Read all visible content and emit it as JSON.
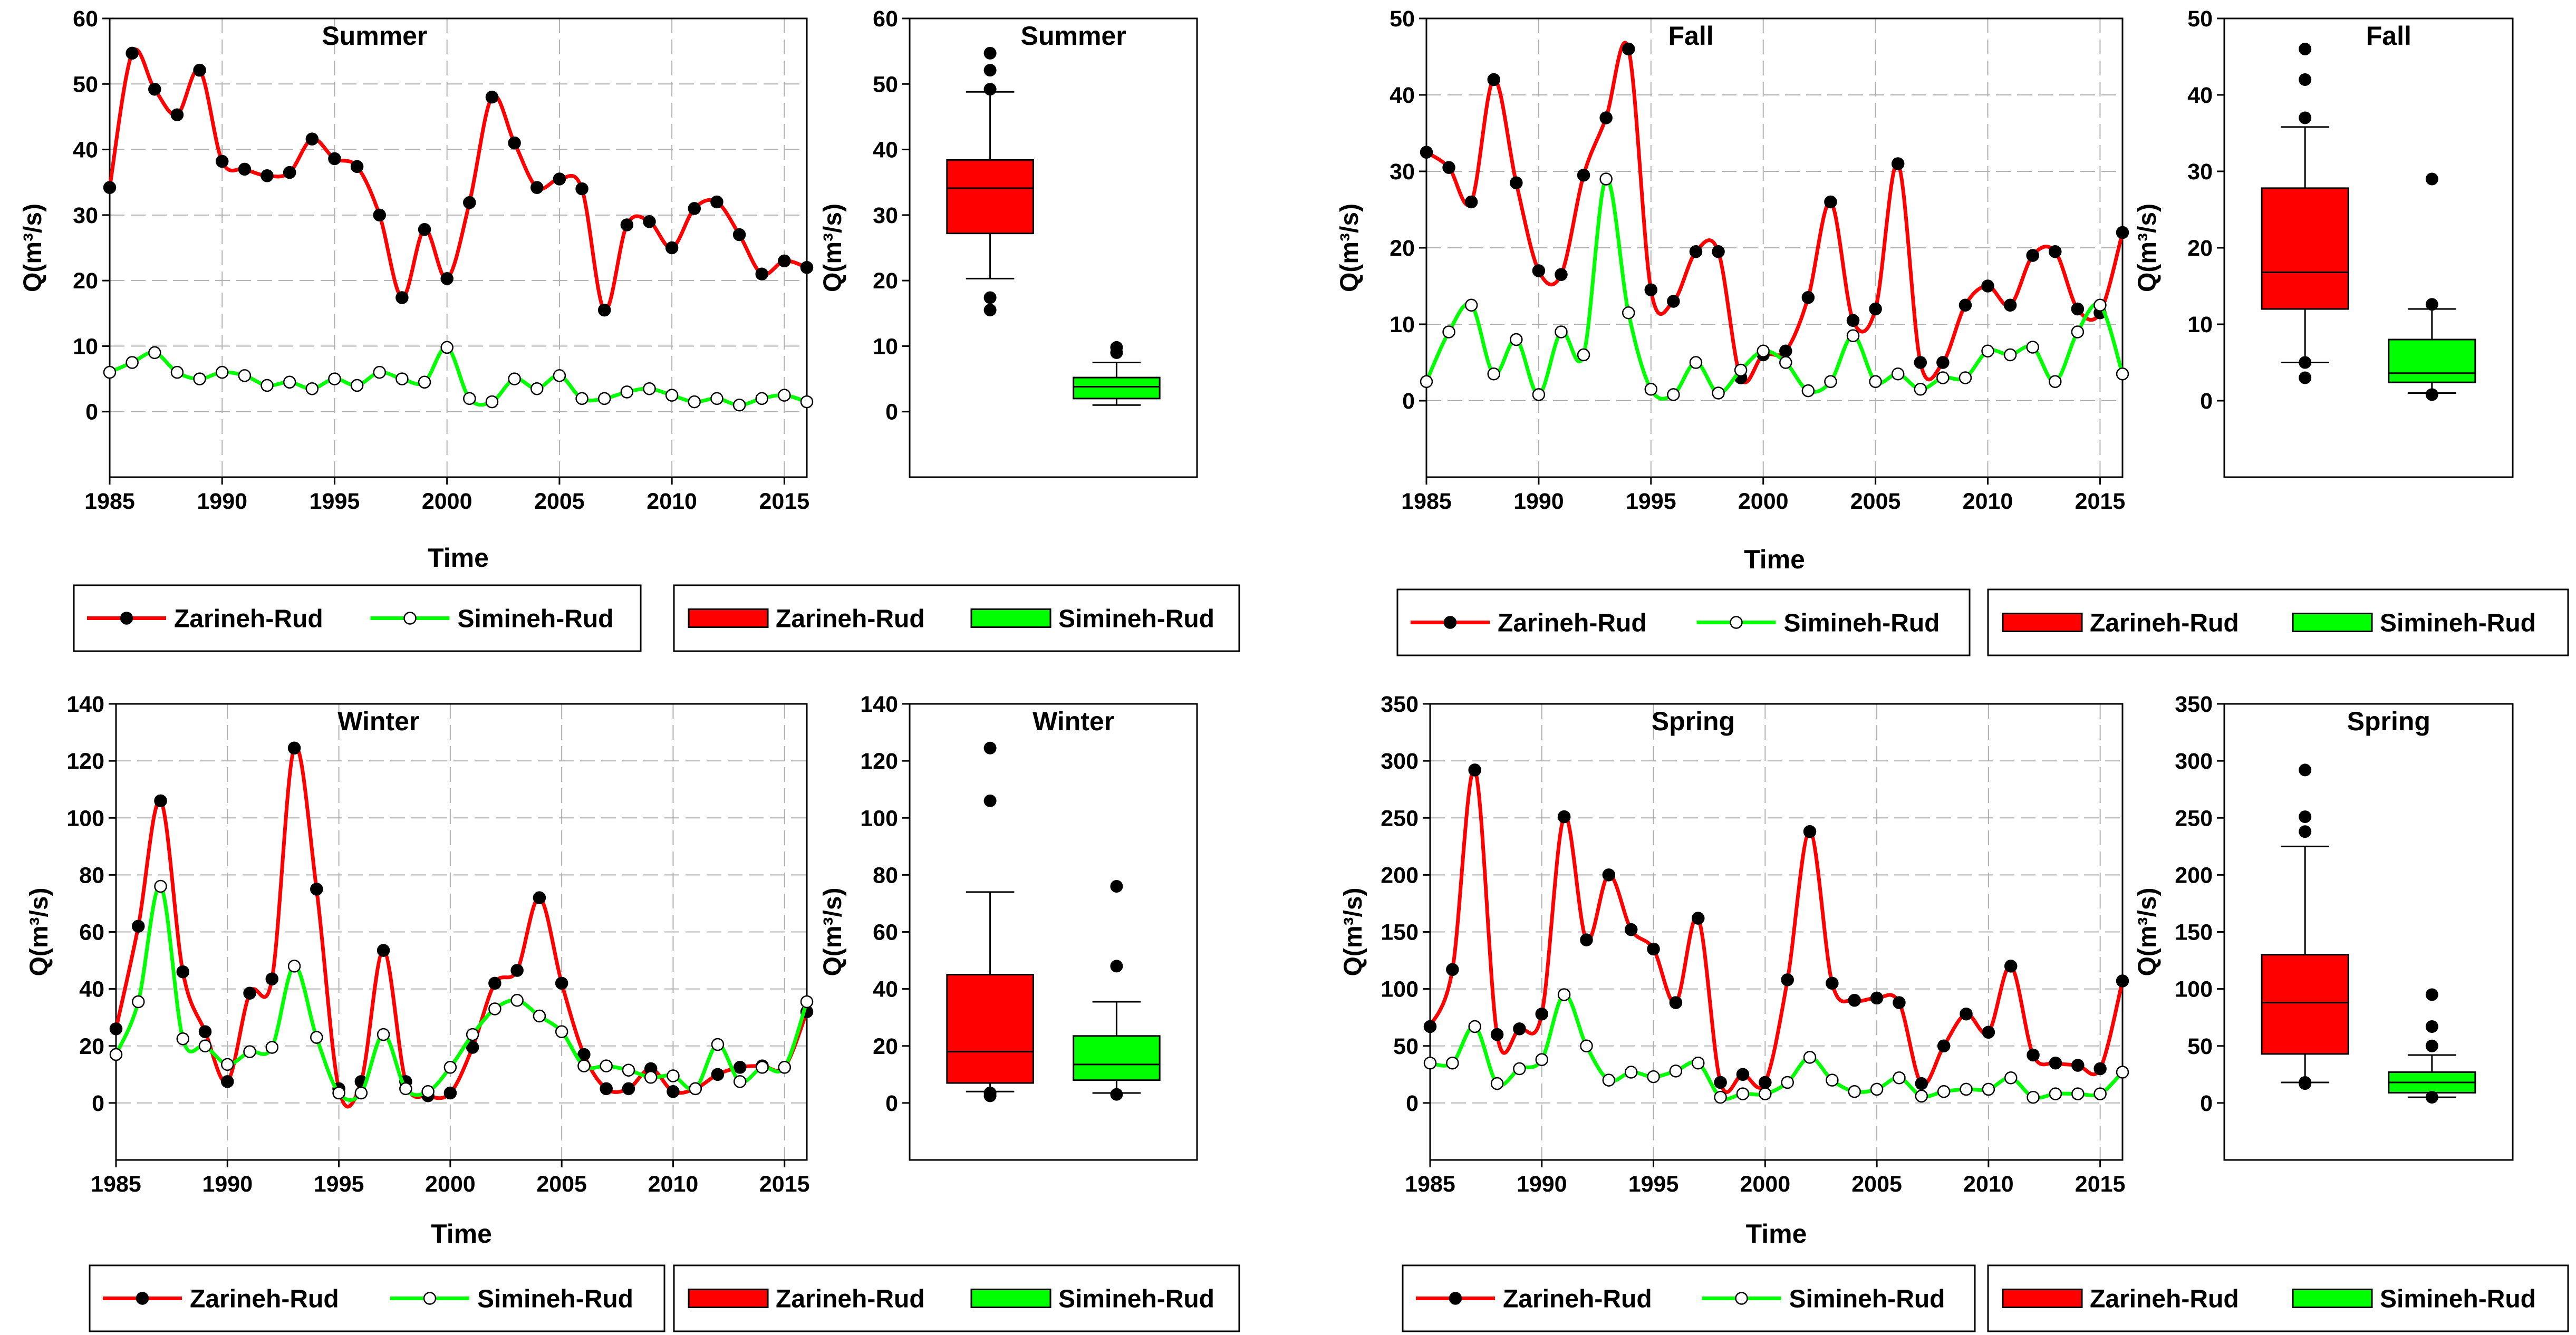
{
  "colors": {
    "zarineh": "#ff0000",
    "simineh": "#00ff00",
    "axis": "#000000",
    "grid": "#b0b0b0"
  },
  "legend": {
    "line_items": [
      {
        "label": "Zarineh-Rud",
        "marker": "filled-circle"
      },
      {
        "label": "Simineh-Rud",
        "marker": "open-circle"
      }
    ],
    "box_items": [
      {
        "label": "Zarineh-Rud"
      },
      {
        "label": "Simineh-Rud"
      }
    ]
  },
  "chart_data": [
    {
      "type": "line",
      "panel": "Summer",
      "title": "Summer",
      "xlabel": "Time",
      "ylabel": "Q(m³/s)",
      "xlim": [
        1985,
        2016
      ],
      "ylim": [
        -10,
        60
      ],
      "xticks": [
        "1985",
        "1990",
        "1995",
        "2000",
        "2005",
        "2010",
        "2015"
      ],
      "yticks": [
        "0",
        "10",
        "20",
        "30",
        "40",
        "50",
        "60"
      ],
      "x": [
        1985,
        1986,
        1987,
        1988,
        1989,
        1990,
        1991,
        1992,
        1993,
        1994,
        1995,
        1996,
        1997,
        1998,
        1999,
        2000,
        2001,
        2002,
        2003,
        2004,
        2005,
        2006,
        2007,
        2008,
        2009,
        2010,
        2011,
        2012,
        2013,
        2014,
        2015,
        2016
      ],
      "series": [
        {
          "name": "Zarineh-Rud",
          "values": [
            34.2,
            54.7,
            49.2,
            45.3,
            52.1,
            38.2,
            37.0,
            36.0,
            36.5,
            41.6,
            38.6,
            37.4,
            30.0,
            17.4,
            27.8,
            20.3,
            31.9,
            48.0,
            41.0,
            34.2,
            35.5,
            34.0,
            15.5,
            28.5,
            29.0,
            25.0,
            31.0,
            32.0,
            27.0,
            21.0,
            23.0,
            22.0
          ]
        },
        {
          "name": "Simineh-Rud",
          "values": [
            6.0,
            7.5,
            9.0,
            6.0,
            5.0,
            6.0,
            5.5,
            4.0,
            4.5,
            3.5,
            5.0,
            4.0,
            6.0,
            5.0,
            4.5,
            9.8,
            2.0,
            1.5,
            5.0,
            3.5,
            5.5,
            2.0,
            2.0,
            3.0,
            3.5,
            2.5,
            1.5,
            2.0,
            1.0,
            2.0,
            2.5,
            1.5
          ]
        }
      ]
    },
    {
      "type": "box",
      "panel": "Summer",
      "title": "Summer",
      "ylabel": "Q(m³/s)",
      "ylim": [
        -10,
        60
      ],
      "yticks": [
        "0",
        "10",
        "20",
        "30",
        "40",
        "50",
        "60"
      ],
      "boxes": [
        {
          "name": "Zarineh-Rud",
          "whisker_low": 20.3,
          "q1": 27.2,
          "median": 34.1,
          "q3": 38.4,
          "whisker_high": 48.8,
          "outliers": [
            17.4,
            15.5,
            49.2,
            52.1,
            54.7
          ]
        },
        {
          "name": "Simineh-Rud",
          "whisker_low": 1.0,
          "q1": 2.0,
          "median": 3.8,
          "q3": 5.2,
          "whisker_high": 7.5,
          "outliers": [
            9.0,
            9.8
          ]
        }
      ]
    },
    {
      "type": "line",
      "panel": "Fall",
      "title": "Fall",
      "xlabel": "Time",
      "ylabel": "Q(m³/s)",
      "xlim": [
        1985,
        2016
      ],
      "ylim": [
        -10,
        50
      ],
      "xticks": [
        "1985",
        "1990",
        "1995",
        "2000",
        "2005",
        "2010",
        "2015"
      ],
      "yticks": [
        "0",
        "10",
        "20",
        "30",
        "40",
        "50"
      ],
      "x": [
        1985,
        1986,
        1987,
        1988,
        1989,
        1990,
        1991,
        1992,
        1993,
        1994,
        1995,
        1996,
        1997,
        1998,
        1999,
        2000,
        2001,
        2002,
        2003,
        2004,
        2005,
        2006,
        2007,
        2008,
        2009,
        2010,
        2011,
        2012,
        2013,
        2014,
        2015,
        2016
      ],
      "series": [
        {
          "name": "Zarineh-Rud",
          "values": [
            32.5,
            30.5,
            26.0,
            42.0,
            28.5,
            17.0,
            16.5,
            29.5,
            37.0,
            46.0,
            14.5,
            13.0,
            19.5,
            19.5,
            3.0,
            6.0,
            6.5,
            13.5,
            26.0,
            10.5,
            12.0,
            31.0,
            5.0,
            5.0,
            12.5,
            15.0,
            12.5,
            19.0,
            19.5,
            12.0,
            11.5,
            22.0
          ]
        },
        {
          "name": "Simineh-Rud",
          "values": [
            2.5,
            9.0,
            12.5,
            3.5,
            8.0,
            0.8,
            9.0,
            6.0,
            29.0,
            11.5,
            1.5,
            0.8,
            5.0,
            1.0,
            4.0,
            6.5,
            5.0,
            1.3,
            2.5,
            8.5,
            2.5,
            3.5,
            1.5,
            3.0,
            3.0,
            6.5,
            6.0,
            7.0,
            2.5,
            9.0,
            12.5,
            3.5
          ]
        }
      ]
    },
    {
      "type": "box",
      "panel": "Fall",
      "title": "Fall",
      "ylabel": "Q(m³/s)",
      "ylim": [
        -10,
        50
      ],
      "yticks": [
        "0",
        "10",
        "20",
        "30",
        "40",
        "50"
      ],
      "boxes": [
        {
          "name": "Zarineh-Rud",
          "whisker_low": 5.0,
          "q1": 12.0,
          "median": 16.8,
          "q3": 27.8,
          "whisker_high": 35.8,
          "outliers": [
            3.0,
            5.0,
            37.0,
            42.0,
            46.0
          ]
        },
        {
          "name": "Simineh-Rud",
          "whisker_low": 1.0,
          "q1": 2.4,
          "median": 3.6,
          "q3": 8.0,
          "whisker_high": 12.0,
          "outliers": [
            0.8,
            12.6,
            29.0
          ]
        }
      ]
    },
    {
      "type": "line",
      "panel": "Winter",
      "title": "Winter",
      "xlabel": "Time",
      "ylabel": "Q(m³/s)",
      "xlim": [
        1985,
        2016
      ],
      "ylim": [
        -20,
        140
      ],
      "xticks": [
        "1985",
        "1990",
        "1995",
        "2000",
        "2005",
        "2010",
        "2015"
      ],
      "yticks": [
        "0",
        "20",
        "40",
        "60",
        "80",
        "100",
        "120",
        "140"
      ],
      "x": [
        1985,
        1986,
        1987,
        1988,
        1989,
        1990,
        1991,
        1992,
        1993,
        1994,
        1995,
        1996,
        1997,
        1998,
        1999,
        2000,
        2001,
        2002,
        2003,
        2004,
        2005,
        2006,
        2007,
        2008,
        2009,
        2010,
        2011,
        2012,
        2013,
        2014,
        2015,
        2016
      ],
      "series": [
        {
          "name": "Zarineh-Rud",
          "values": [
            26.0,
            62.0,
            106.0,
            46.0,
            25.0,
            7.5,
            38.5,
            43.5,
            124.5,
            75.0,
            5.0,
            7.5,
            53.5,
            7.5,
            2.5,
            3.5,
            19.5,
            42.0,
            46.5,
            72.0,
            42.0,
            17.0,
            5.0,
            5.0,
            12.0,
            4.0,
            5.0,
            10.0,
            12.5,
            13.0,
            12.5,
            32.0
          ]
        },
        {
          "name": "Simineh-Rud",
          "values": [
            17.0,
            35.5,
            76.0,
            22.5,
            20.0,
            13.5,
            18.0,
            19.5,
            48.0,
            23.0,
            3.5,
            3.5,
            24.0,
            5.0,
            4.0,
            12.5,
            24.0,
            33.0,
            36.0,
            30.5,
            25.0,
            13.0,
            13.0,
            11.5,
            9.0,
            9.5,
            5.0,
            20.5,
            7.5,
            12.5,
            12.5,
            35.5
          ]
        }
      ]
    },
    {
      "type": "box",
      "panel": "Winter",
      "title": "Winter",
      "ylabel": "Q(m³/s)",
      "ylim": [
        -20,
        140
      ],
      "yticks": [
        "0",
        "20",
        "40",
        "60",
        "80",
        "100",
        "120",
        "140"
      ],
      "boxes": [
        {
          "name": "Zarineh-Rud",
          "whisker_low": 4.0,
          "q1": 7.0,
          "median": 18.0,
          "q3": 45.0,
          "whisker_high": 74.0,
          "outliers": [
            2.5,
            3.5,
            106.0,
            124.5
          ]
        },
        {
          "name": "Simineh-Rud",
          "whisker_low": 3.5,
          "q1": 8.0,
          "median": 13.5,
          "q3": 23.5,
          "whisker_high": 35.5,
          "outliers": [
            3.0,
            48.0,
            76.0
          ]
        }
      ]
    },
    {
      "type": "line",
      "panel": "Spring",
      "title": "Spring",
      "xlabel": "Time",
      "ylabel": "Q(m³/s)",
      "xlim": [
        1985,
        2016
      ],
      "ylim": [
        -50,
        350
      ],
      "xticks": [
        "1985",
        "1990",
        "1995",
        "2000",
        "2005",
        "2010",
        "2015"
      ],
      "yticks": [
        "0",
        "50",
        "100",
        "150",
        "200",
        "250",
        "300",
        "350"
      ],
      "x": [
        1985,
        1986,
        1987,
        1988,
        1989,
        1990,
        1991,
        1992,
        1993,
        1994,
        1995,
        1996,
        1997,
        1998,
        1999,
        2000,
        2001,
        2002,
        2003,
        2004,
        2005,
        2006,
        2007,
        2008,
        2009,
        2010,
        2011,
        2012,
        2013,
        2014,
        2015,
        2016
      ],
      "series": [
        {
          "name": "Zarineh-Rud",
          "values": [
            67,
            117,
            292,
            60,
            65,
            78,
            251,
            143,
            200,
            152,
            135,
            88,
            162,
            18,
            25,
            18,
            108,
            238,
            105,
            90,
            92,
            88,
            17,
            50,
            78,
            62,
            120,
            42,
            35,
            33,
            30,
            107
          ]
        },
        {
          "name": "Simineh-Rud",
          "values": [
            35,
            35,
            67,
            17,
            30,
            38,
            95,
            50,
            20,
            27,
            23,
            28,
            35,
            5,
            8,
            8,
            18,
            40,
            20,
            10,
            12,
            22,
            6,
            10,
            12,
            12,
            22,
            5,
            8,
            8,
            8,
            27
          ]
        }
      ]
    },
    {
      "type": "box",
      "panel": "Spring",
      "title": "Spring",
      "ylabel": "Q(m³/s)",
      "ylim": [
        -50,
        350
      ],
      "yticks": [
        "0",
        "50",
        "100",
        "150",
        "200",
        "250",
        "300",
        "350"
      ],
      "boxes": [
        {
          "name": "Zarineh-Rud",
          "whisker_low": 18.0,
          "q1": 43.0,
          "median": 88.0,
          "q3": 130.0,
          "whisker_high": 225.0,
          "outliers": [
            17.0,
            18.0,
            238.0,
            251.0,
            292.0
          ]
        },
        {
          "name": "Simineh-Rud",
          "whisker_low": 5.0,
          "q1": 9.0,
          "median": 18.0,
          "q3": 27.0,
          "whisker_high": 42.0,
          "outliers": [
            5.0,
            50.0,
            67.0,
            95.0
          ]
        }
      ]
    }
  ]
}
